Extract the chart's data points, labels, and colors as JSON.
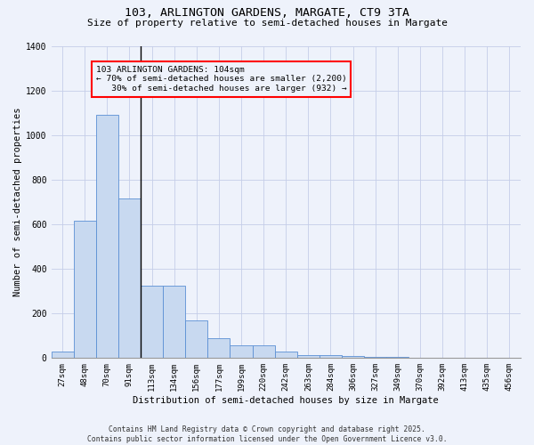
{
  "title_line1": "103, ARLINGTON GARDENS, MARGATE, CT9 3TA",
  "title_line2": "Size of property relative to semi-detached houses in Margate",
  "xlabel": "Distribution of semi-detached houses by size in Margate",
  "ylabel": "Number of semi-detached properties",
  "categories": [
    "27sqm",
    "48sqm",
    "70sqm",
    "91sqm",
    "113sqm",
    "134sqm",
    "156sqm",
    "177sqm",
    "199sqm",
    "220sqm",
    "242sqm",
    "263sqm",
    "284sqm",
    "306sqm",
    "327sqm",
    "349sqm",
    "370sqm",
    "392sqm",
    "413sqm",
    "435sqm",
    "456sqm"
  ],
  "values": [
    30,
    615,
    1090,
    715,
    325,
    325,
    170,
    90,
    57,
    57,
    30,
    15,
    15,
    10,
    5,
    5,
    3,
    3,
    1,
    0,
    0
  ],
  "bar_color": "#c8d9f0",
  "bar_edge_color": "#5b8fd4",
  "annotation_line1": "103 ARLINGTON GARDENS: 104sqm",
  "annotation_line2": "← 70% of semi-detached houses are smaller (2,200)",
  "annotation_line3": "   30% of semi-detached houses are larger (932) →",
  "vline_color": "black",
  "box_color": "red",
  "ylim": [
    0,
    1400
  ],
  "yticks": [
    0,
    200,
    400,
    600,
    800,
    1000,
    1200,
    1400
  ],
  "footnote_line1": "Contains HM Land Registry data © Crown copyright and database right 2025.",
  "footnote_line2": "Contains public sector information licensed under the Open Government Licence v3.0.",
  "bg_color": "#eef2fb",
  "grid_color": "#c5cde8",
  "title1_fontsize": 9.5,
  "title2_fontsize": 8.0,
  "annot_fontsize": 6.8,
  "tick_fontsize": 6.5,
  "ylabel_fontsize": 7.5,
  "xlabel_fontsize": 7.5,
  "footnote_fontsize": 5.8
}
